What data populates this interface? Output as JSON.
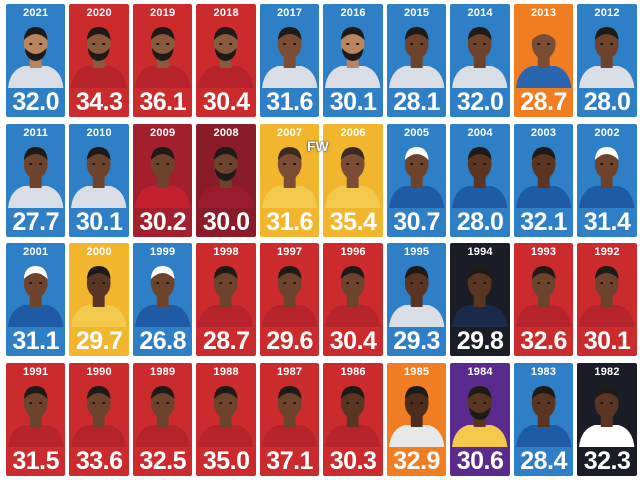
{
  "watermark": "FW",
  "tiles": [
    {
      "year": "2021",
      "value": "32.0",
      "bg": "#2f7fc7",
      "skin": "#b98460",
      "jersey": "#d9dde6",
      "hair": "#1e1a18",
      "beard": true
    },
    {
      "year": "2020",
      "value": "34.3",
      "bg": "#cc2b2e",
      "skin": "#8a5a3e",
      "jersey": "#b6232a",
      "hair": "#1e1a18",
      "beard": true
    },
    {
      "year": "2019",
      "value": "36.1",
      "bg": "#cc2b2e",
      "skin": "#8a5a3e",
      "jersey": "#b6232a",
      "hair": "#1e1a18",
      "beard": true
    },
    {
      "year": "2018",
      "value": "30.4",
      "bg": "#cc2b2e",
      "skin": "#8a5a3e",
      "jersey": "#b6232a",
      "hair": "#1e1a18",
      "beard": true
    },
    {
      "year": "2017",
      "value": "31.6",
      "bg": "#2f7fc7",
      "skin": "#7b4d35",
      "jersey": "#d9dde6",
      "hair": "#1e1a18",
      "beard": false
    },
    {
      "year": "2016",
      "value": "30.1",
      "bg": "#2f7fc7",
      "skin": "#b98460",
      "jersey": "#d9dde6",
      "hair": "#1e1a18",
      "beard": true
    },
    {
      "year": "2015",
      "value": "28.1",
      "bg": "#2f7fc7",
      "skin": "#6e432e",
      "jersey": "#d9dde6",
      "hair": "#1e1a18",
      "beard": false
    },
    {
      "year": "2014",
      "value": "32.0",
      "bg": "#2f7fc7",
      "skin": "#6e432e",
      "jersey": "#d9dde6",
      "hair": "#1e1a18",
      "beard": false
    },
    {
      "year": "2013",
      "value": "28.7",
      "bg": "#f07d21",
      "skin": "#7b4d35",
      "jersey": "#2a66b0",
      "hair": "#f07d21",
      "beard": false
    },
    {
      "year": "2012",
      "value": "28.0",
      "bg": "#2f7fc7",
      "skin": "#6e432e",
      "jersey": "#d9dde6",
      "hair": "#1e1a18",
      "beard": false
    },
    {
      "year": "2011",
      "value": "27.7",
      "bg": "#2f7fc7",
      "skin": "#6e432e",
      "jersey": "#d9dde6",
      "hair": "#1e1a18",
      "beard": false
    },
    {
      "year": "2010",
      "value": "30.1",
      "bg": "#2f7fc7",
      "skin": "#6e432e",
      "jersey": "#d9dde6",
      "hair": "#1e1a18",
      "beard": false
    },
    {
      "year": "2009",
      "value": "30.2",
      "bg": "#a41f2e",
      "skin": "#6e432e",
      "jersey": "#c4212f",
      "hair": "#1e1a18",
      "beard": false
    },
    {
      "year": "2008",
      "value": "30.0",
      "bg": "#8a1c2a",
      "skin": "#6e432e",
      "jersey": "#9a1b2e",
      "hair": "#1e1a18",
      "beard": true
    },
    {
      "year": "2007",
      "value": "31.6",
      "bg": "#f2b52e",
      "skin": "#7b4d35",
      "jersey": "#f2c94c",
      "hair": "#3a2a20",
      "beard": false
    },
    {
      "year": "2006",
      "value": "35.4",
      "bg": "#f2b52e",
      "skin": "#7b4d35",
      "jersey": "#f2c94c",
      "hair": "#3a2a20",
      "beard": false
    },
    {
      "year": "2005",
      "value": "30.7",
      "bg": "#2f7fc7",
      "skin": "#6e432e",
      "jersey": "#1f5ba5",
      "hair": "#ffffff",
      "beard": false
    },
    {
      "year": "2004",
      "value": "28.0",
      "bg": "#2f7fc7",
      "skin": "#5a3523",
      "jersey": "#1f5ba5",
      "hair": "#1e1a18",
      "beard": false
    },
    {
      "year": "2003",
      "value": "32.1",
      "bg": "#2f7fc7",
      "skin": "#5a3523",
      "jersey": "#1f5ba5",
      "hair": "#1e1a18",
      "beard": false
    },
    {
      "year": "2002",
      "value": "31.4",
      "bg": "#2f7fc7",
      "skin": "#6e432e",
      "jersey": "#1f5ba5",
      "hair": "#ffffff",
      "beard": false
    },
    {
      "year": "2001",
      "value": "31.1",
      "bg": "#2f7fc7",
      "skin": "#6e432e",
      "jersey": "#1f5ba5",
      "hair": "#ffffff",
      "beard": false
    },
    {
      "year": "2000",
      "value": "29.7",
      "bg": "#f2b52e",
      "skin": "#5a3523",
      "jersey": "#f2c94c",
      "hair": "#1e1a18",
      "beard": false
    },
    {
      "year": "1999",
      "value": "26.8",
      "bg": "#2f7fc7",
      "skin": "#6e432e",
      "jersey": "#1f5ba5",
      "hair": "#ffffff",
      "beard": false
    },
    {
      "year": "1998",
      "value": "28.7",
      "bg": "#cc2b2e",
      "skin": "#6e432e",
      "jersey": "#b6232a",
      "hair": "#1e1a18",
      "beard": false
    },
    {
      "year": "1997",
      "value": "29.6",
      "bg": "#cc2b2e",
      "skin": "#6e432e",
      "jersey": "#b6232a",
      "hair": "#1e1a18",
      "beard": false
    },
    {
      "year": "1996",
      "value": "30.4",
      "bg": "#cc2b2e",
      "skin": "#6e432e",
      "jersey": "#b6232a",
      "hair": "#1e1a18",
      "beard": false
    },
    {
      "year": "1995",
      "value": "29.3",
      "bg": "#2f7fc7",
      "skin": "#5a3523",
      "jersey": "#d9dde6",
      "hair": "#1e1a18",
      "beard": false
    },
    {
      "year": "1994",
      "value": "29.8",
      "bg": "#1b1d26",
      "skin": "#5a3523",
      "jersey": "#1b2a4a",
      "hair": "#1e1a18",
      "beard": false
    },
    {
      "year": "1993",
      "value": "32.6",
      "bg": "#cc2b2e",
      "skin": "#6e432e",
      "jersey": "#b6232a",
      "hair": "#1e1a18",
      "beard": false
    },
    {
      "year": "1992",
      "value": "30.1",
      "bg": "#cc2b2e",
      "skin": "#6e432e",
      "jersey": "#b6232a",
      "hair": "#1e1a18",
      "beard": false
    },
    {
      "year": "1991",
      "value": "31.5",
      "bg": "#cc2b2e",
      "skin": "#6e432e",
      "jersey": "#b6232a",
      "hair": "#1e1a18",
      "beard": false
    },
    {
      "year": "1990",
      "value": "33.6",
      "bg": "#cc2b2e",
      "skin": "#6e432e",
      "jersey": "#b6232a",
      "hair": "#1e1a18",
      "beard": false
    },
    {
      "year": "1989",
      "value": "32.5",
      "bg": "#cc2b2e",
      "skin": "#6e432e",
      "jersey": "#b6232a",
      "hair": "#1e1a18",
      "beard": false
    },
    {
      "year": "1988",
      "value": "35.0",
      "bg": "#cc2b2e",
      "skin": "#6e432e",
      "jersey": "#b6232a",
      "hair": "#1e1a18",
      "beard": false
    },
    {
      "year": "1987",
      "value": "37.1",
      "bg": "#cc2b2e",
      "skin": "#6e432e",
      "jersey": "#b6232a",
      "hair": "#1e1a18",
      "beard": false
    },
    {
      "year": "1986",
      "value": "30.3",
      "bg": "#cc2b2e",
      "skin": "#5a3523",
      "jersey": "#b6232a",
      "hair": "#1e1a18",
      "beard": false
    },
    {
      "year": "1985",
      "value": "32.9",
      "bg": "#f07d21",
      "skin": "#4d2c1c",
      "jersey": "#e8e8e8",
      "hair": "#1e1a18",
      "beard": false
    },
    {
      "year": "1984",
      "value": "30.6",
      "bg": "#5a2a8c",
      "skin": "#5a3523",
      "jersey": "#f2c94c",
      "hair": "#1e1a18",
      "beard": true
    },
    {
      "year": "1983",
      "value": "28.4",
      "bg": "#2f7fc7",
      "skin": "#5a3523",
      "jersey": "#1f5ba5",
      "hair": "#1e1a18",
      "beard": false
    },
    {
      "year": "1982",
      "value": "32.3",
      "bg": "#1b1d26",
      "skin": "#5a3523",
      "jersey": "#ffffff",
      "hair": "#1e1a18",
      "beard": false
    }
  ]
}
